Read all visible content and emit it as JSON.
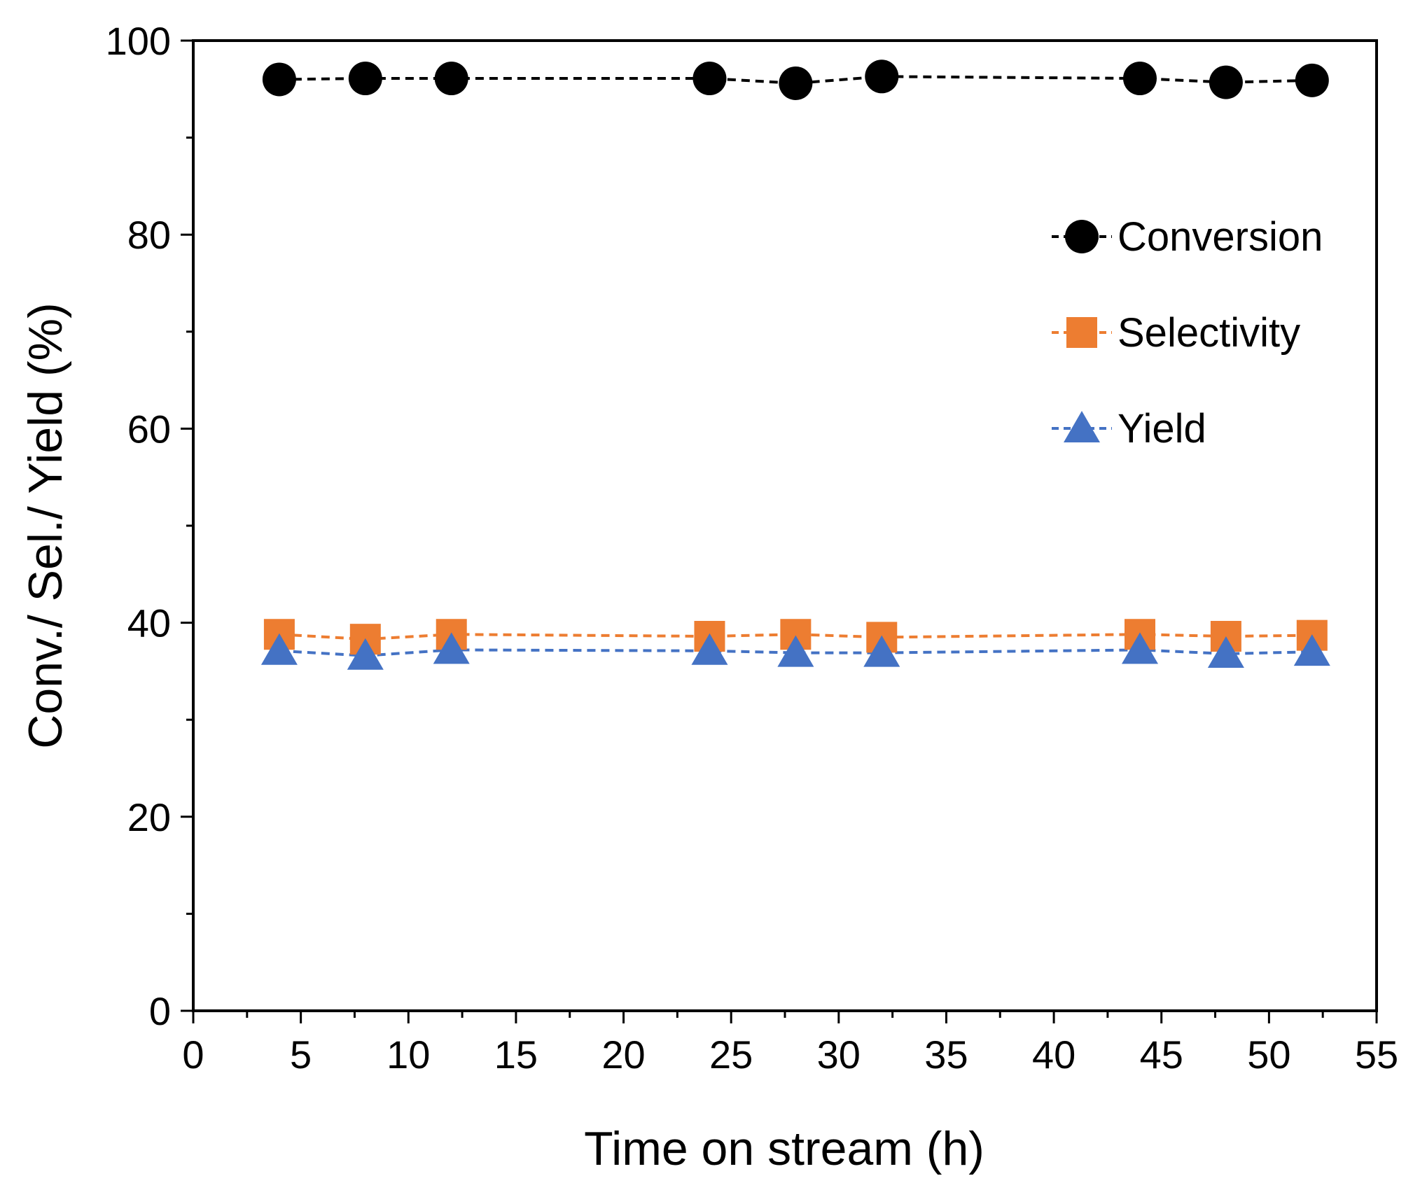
{
  "chart_data": {
    "type": "line",
    "title": "",
    "xlabel": "Time on stream (h)",
    "ylabel": "Conv./ Sel./ Yield (%)",
    "xlim": [
      0,
      55
    ],
    "ylim": [
      0,
      100
    ],
    "xticks": [
      0,
      5,
      10,
      15,
      20,
      25,
      30,
      35,
      40,
      45,
      50,
      55
    ],
    "yticks": [
      0,
      20,
      40,
      60,
      80,
      100
    ],
    "x_minor_step": 2.5,
    "y_minor_step": 10,
    "grid": false,
    "legend_position": "right, upper-middle inside plot",
    "x": [
      4,
      8,
      12,
      24,
      28,
      32,
      44,
      48,
      52
    ],
    "series": [
      {
        "name": "Conversion",
        "marker": "circle",
        "line_style": "dashed",
        "color": "#000000",
        "values": [
          96.0,
          96.1,
          96.1,
          96.1,
          95.6,
          96.3,
          96.1,
          95.7,
          95.9
        ]
      },
      {
        "name": "Selectivity",
        "marker": "square",
        "line_style": "dashed",
        "color": "#ED7D31",
        "values": [
          38.8,
          38.3,
          38.8,
          38.6,
          38.8,
          38.5,
          38.8,
          38.6,
          38.7
        ]
      },
      {
        "name": "Yield",
        "marker": "triangle",
        "line_style": "dashed",
        "color": "#4472C4",
        "values": [
          37.1,
          36.6,
          37.2,
          37.1,
          36.9,
          36.9,
          37.2,
          36.8,
          37.0
        ]
      }
    ]
  }
}
